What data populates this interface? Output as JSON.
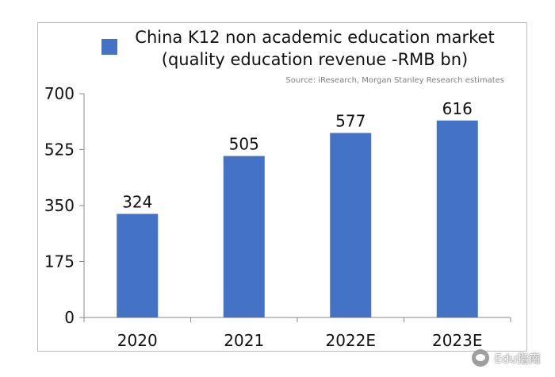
{
  "chart_data": {
    "type": "bar",
    "title": "China K12 non academic education market (quality education revenue -RMB bn)",
    "source": "Source: iResearch, Morgan Stanley Research estimates",
    "categories": [
      "2020",
      "2021",
      "2022E",
      "2023E"
    ],
    "series": [
      {
        "name": "China K12 non academic education market (quality education revenue -RMB bn)",
        "values": [
          324,
          505,
          577,
          616
        ]
      }
    ],
    "ylim": [
      0,
      700
    ],
    "yticks": [
      "0",
      "175",
      "350",
      "525",
      "700"
    ],
    "data_labels": [
      "324",
      "505",
      "577",
      "616"
    ],
    "bar_color": "#4472c4",
    "grid": false,
    "legend_position": "top"
  },
  "legend": {
    "line1": "China K12 non academic education market",
    "line2": "(quality education revenue -RMB bn)"
  },
  "source_text": "Source: iResearch, Morgan Stanley Research estimates",
  "watermark": {
    "icon": "wechat-icon",
    "text": "Edu指南"
  }
}
